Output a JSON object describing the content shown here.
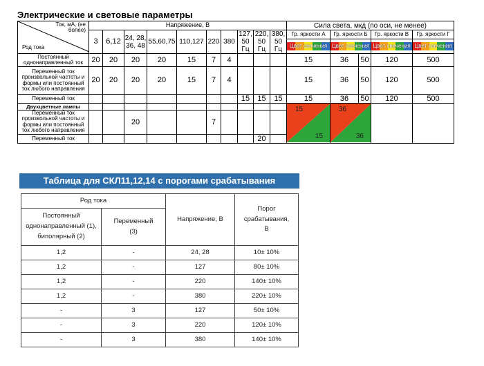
{
  "title": "Электрические и световые параметры",
  "table1": {
    "corner_top": "Ток, мА, (не более)",
    "corner_bottom": "Род тока",
    "voltage_header": "Напряжение, В",
    "light_header": "Сила света, мкд (по оси, не менее)",
    "voltage_cols": [
      "3",
      "6,12",
      "24, 28, 36, 48",
      "55,60,75",
      "110,127",
      "220",
      "380",
      "127, 50 Гц",
      "220, 50 Гц",
      "380, 50 Гц"
    ],
    "groups": [
      "Гр. яркости А",
      "Гр. яркости Б",
      "Гр. яркости В",
      "Гр. яркости Г"
    ],
    "color_label": "Цвет свечения",
    "color_swatches": [
      "#e8231c",
      "#f6a11a",
      "#f4e21e",
      "#2aa53b",
      "#2f6fc0"
    ],
    "rows": [
      {
        "label": "Постоянный однонаправленный ток",
        "v": [
          "20",
          "20",
          "20",
          "20",
          "15",
          "7",
          "4",
          "",
          "",
          ""
        ],
        "a": "15",
        "b": "36",
        "b2": "50",
        "c": "120",
        "d": "500"
      },
      {
        "label": "Переменный ток произвольной частоты и формы или постоянный ток любого направления",
        "v": [
          "20",
          "20",
          "20",
          "20",
          "15",
          "7",
          "4",
          "",
          "",
          ""
        ],
        "a": "15",
        "b": "36",
        "b2": "50",
        "c": "120",
        "d": "500"
      },
      {
        "label": "Переменный ток",
        "v": [
          "",
          "",
          "",
          "",
          "",
          "",
          "",
          "15",
          "15",
          "15"
        ],
        "a": "15",
        "b": "36",
        "b2": "50",
        "c": "120",
        "d": "500"
      }
    ],
    "bicolor": {
      "section_label": "Двухцветные лампы",
      "row_label": "Переменный ток произвольной частоты и формы или постоянный ток любого направления",
      "v3": "20",
      "v6": "7",
      "a_top": "15",
      "a_bot": "15",
      "b_top": "36",
      "b_bot": "36",
      "red": "#e8411c",
      "green": "#2ea53b",
      "last_label": "Переменный ток",
      "last_v9": "20"
    }
  },
  "table2": {
    "title": "Таблица для СКЛ11,12,14 с порогами срабатывания",
    "hdr_rod": "Род тока",
    "hdr_dc": "Постоянный однонаправленный (1), биполярный (2)",
    "hdr_ac": "Переменный (3)",
    "hdr_volt": "Напряжение, В",
    "hdr_thr": "Порог срабатывания, В",
    "rows": [
      {
        "dc": "1,2",
        "ac": "-",
        "volt": "24, 28",
        "thr": "10± 10%"
      },
      {
        "dc": "1,2",
        "ac": "-",
        "volt": "127",
        "thr": "80± 10%"
      },
      {
        "dc": "1,2",
        "ac": "-",
        "volt": "220",
        "thr": "140± 10%"
      },
      {
        "dc": "1,2",
        "ac": "-",
        "volt": "380",
        "thr": "220± 10%"
      },
      {
        "dc": "-",
        "ac": "3",
        "volt": "127",
        "thr": "50± 10%"
      },
      {
        "dc": "-",
        "ac": "3",
        "volt": "220",
        "thr": "120± 10%"
      },
      {
        "dc": "-",
        "ac": "3",
        "volt": "380",
        "thr": "140± 10%"
      }
    ]
  }
}
